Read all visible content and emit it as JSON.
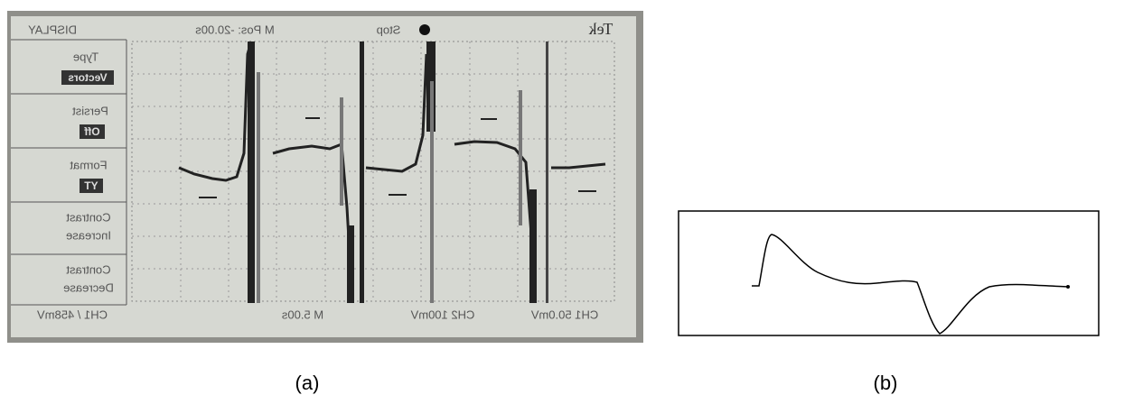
{
  "panel_a": {
    "label": "(a)",
    "screen": {
      "top_bar": {
        "menu_title": "DISPLAY",
        "position": "M Pos: -20.00s",
        "status": "Stop",
        "brand": "Tek"
      },
      "menu": [
        {
          "title": "Type",
          "value": "Vectors"
        },
        {
          "title": "Persist",
          "value": "Off"
        },
        {
          "title": "Format",
          "value": "YT"
        },
        {
          "title": "Contrast",
          "value": "Increase"
        },
        {
          "title": "Contrast",
          "value": "Decrease"
        }
      ],
      "bottom_bar": {
        "ch1": "CH1 50.0mV",
        "ch2": "CH2 100mV",
        "timebase": "M 5.00s",
        "trigger": "CH1 / 458mV"
      }
    }
  },
  "panel_b": {
    "label": "(b)"
  }
}
